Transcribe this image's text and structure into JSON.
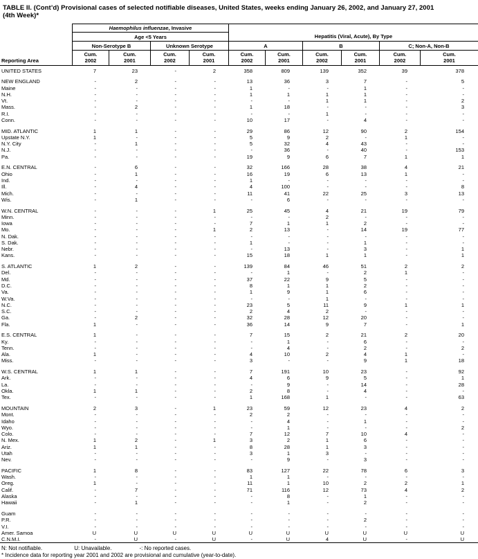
{
  "title": {
    "line1": "TABLE II. (Cont’d) Provisional cases of selected notifiable diseases, United States, weeks ending January 26, 2002, and January 27, 2001",
    "line2": "(4th Week)*"
  },
  "table": {
    "reporting_area_label": "Reporting Area",
    "hib_title_italic": "Haemophilus influenzae",
    "hib_title_rest": ", Invasive",
    "age_label": "Age <5 Years",
    "hep_label": "Hepatitis (Viral, Acute), By Type",
    "groups": [
      "Non-Serotype B",
      "Unknown Serotype",
      "A",
      "B",
      "C; Non-A, Non-B"
    ],
    "cum_cols": [
      {
        "t": "Cum.",
        "b": "2002"
      },
      {
        "t": "Cum.",
        "b": "2001"
      },
      {
        "t": "Cum.",
        "b": "2002"
      },
      {
        "t": "Cum.",
        "b": "2001"
      },
      {
        "t": "Cum.",
        "b": "2002"
      },
      {
        "t": "Cum.",
        "b": "2001"
      },
      {
        "t": "Cum.",
        "b": "2002"
      },
      {
        "t": "Cum.",
        "b": "2001"
      },
      {
        "t": "Cum.",
        "b": "2002"
      },
      {
        "t": "Cum.",
        "b": "2001"
      }
    ],
    "rows": [
      {
        "l": "UNITED STATES",
        "v": [
          "7",
          "23",
          "-",
          "2",
          "358",
          "809",
          "139",
          "352",
          "39",
          "378"
        ]
      },
      {
        "l": "NEW ENGLAND",
        "g": true,
        "v": [
          "-",
          "2",
          "-",
          "-",
          "13",
          "36",
          "3",
          "7",
          "-",
          "5"
        ]
      },
      {
        "l": "Maine",
        "v": [
          "-",
          "-",
          "-",
          "-",
          "1",
          "-",
          "-",
          "1",
          "-",
          "-"
        ]
      },
      {
        "l": "N.H.",
        "v": [
          "-",
          "-",
          "-",
          "-",
          "1",
          "1",
          "1",
          "1",
          "-",
          "-"
        ]
      },
      {
        "l": "Vt.",
        "v": [
          "-",
          "-",
          "-",
          "-",
          "-",
          "-",
          "1",
          "1",
          "-",
          "2"
        ]
      },
      {
        "l": "Mass.",
        "v": [
          "-",
          "2",
          "-",
          "-",
          "1",
          "18",
          "-",
          "-",
          "-",
          "3"
        ]
      },
      {
        "l": "R.I.",
        "v": [
          "-",
          "-",
          "-",
          "-",
          "-",
          "-",
          "1",
          "-",
          "-",
          "-"
        ]
      },
      {
        "l": "Conn.",
        "v": [
          "-",
          "-",
          "-",
          "-",
          "10",
          "17",
          "-",
          "4",
          "-",
          "-"
        ]
      },
      {
        "l": "MID. ATLANTIC",
        "g": true,
        "v": [
          "1",
          "1",
          "-",
          "-",
          "29",
          "86",
          "12",
          "90",
          "2",
          "154"
        ]
      },
      {
        "l": "Upstate N.Y.",
        "v": [
          "1",
          "-",
          "-",
          "-",
          "5",
          "9",
          "2",
          "-",
          "1",
          "-"
        ]
      },
      {
        "l": "N.Y. City",
        "v": [
          "-",
          "1",
          "-",
          "-",
          "5",
          "32",
          "4",
          "43",
          "-",
          "-"
        ]
      },
      {
        "l": "N.J.",
        "v": [
          "-",
          "-",
          "-",
          "-",
          "-",
          "36",
          "-",
          "40",
          "-",
          "153"
        ]
      },
      {
        "l": "Pa.",
        "v": [
          "-",
          "-",
          "-",
          "-",
          "19",
          "9",
          "6",
          "7",
          "1",
          "1"
        ]
      },
      {
        "l": "E.N. CENTRAL",
        "g": true,
        "v": [
          "-",
          "6",
          "-",
          "-",
          "32",
          "166",
          "28",
          "38",
          "4",
          "21"
        ]
      },
      {
        "l": "Ohio",
        "v": [
          "-",
          "1",
          "-",
          "-",
          "16",
          "19",
          "6",
          "13",
          "1",
          "-"
        ]
      },
      {
        "l": "Ind.",
        "v": [
          "-",
          "-",
          "-",
          "-",
          "1",
          "-",
          "-",
          "-",
          "-",
          "-"
        ]
      },
      {
        "l": "Ill.",
        "v": [
          "-",
          "4",
          "-",
          "-",
          "4",
          "100",
          "-",
          "-",
          "-",
          "8"
        ]
      },
      {
        "l": "Mich.",
        "v": [
          "-",
          "-",
          "-",
          "-",
          "11",
          "41",
          "22",
          "25",
          "3",
          "13"
        ]
      },
      {
        "l": "Wis.",
        "v": [
          "-",
          "1",
          "-",
          "-",
          "-",
          "6",
          "-",
          "-",
          "-",
          "-"
        ]
      },
      {
        "l": "W.N. CENTRAL",
        "g": true,
        "v": [
          "-",
          "-",
          "-",
          "1",
          "25",
          "45",
          "4",
          "21",
          "19",
          "79"
        ]
      },
      {
        "l": "Minn.",
        "v": [
          "-",
          "-",
          "-",
          "-",
          "-",
          "-",
          "2",
          "-",
          "-",
          "-"
        ]
      },
      {
        "l": "Iowa",
        "v": [
          "-",
          "-",
          "-",
          "-",
          "7",
          "1",
          "1",
          "2",
          "-",
          "-"
        ]
      },
      {
        "l": "Mo.",
        "v": [
          "-",
          "-",
          "-",
          "1",
          "2",
          "13",
          "-",
          "14",
          "19",
          "77"
        ]
      },
      {
        "l": "N. Dak.",
        "v": [
          "-",
          "-",
          "-",
          "-",
          "-",
          "-",
          "-",
          "-",
          "-",
          "-"
        ]
      },
      {
        "l": "S. Dak.",
        "v": [
          "-",
          "-",
          "-",
          "-",
          "1",
          "-",
          "-",
          "1",
          "-",
          "-"
        ]
      },
      {
        "l": "Nebr.",
        "v": [
          "-",
          "-",
          "-",
          "-",
          "-",
          "13",
          "-",
          "3",
          "-",
          "1"
        ]
      },
      {
        "l": "Kans.",
        "v": [
          "-",
          "-",
          "-",
          "-",
          "15",
          "18",
          "1",
          "1",
          "-",
          "1"
        ]
      },
      {
        "l": "S. ATLANTIC",
        "g": true,
        "v": [
          "1",
          "2",
          "-",
          "-",
          "139",
          "84",
          "46",
          "51",
          "2",
          "2"
        ]
      },
      {
        "l": "Del.",
        "v": [
          "-",
          "-",
          "-",
          "-",
          "-",
          "1",
          "-",
          "2",
          "1",
          "-"
        ]
      },
      {
        "l": "Md.",
        "v": [
          "-",
          "-",
          "-",
          "-",
          "37",
          "22",
          "9",
          "5",
          "-",
          "-"
        ]
      },
      {
        "l": "D.C.",
        "v": [
          "-",
          "-",
          "-",
          "-",
          "8",
          "1",
          "1",
          "2",
          "-",
          "-"
        ]
      },
      {
        "l": "Va.",
        "v": [
          "-",
          "-",
          "-",
          "-",
          "1",
          "9",
          "1",
          "6",
          "-",
          "-"
        ]
      },
      {
        "l": "W.Va.",
        "v": [
          "-",
          "-",
          "-",
          "-",
          "-",
          "-",
          "1",
          "-",
          "-",
          "-"
        ]
      },
      {
        "l": "N.C.",
        "v": [
          "-",
          "-",
          "-",
          "-",
          "23",
          "5",
          "11",
          "9",
          "1",
          "1"
        ]
      },
      {
        "l": "S.C.",
        "v": [
          "-",
          "-",
          "-",
          "-",
          "2",
          "4",
          "2",
          "-",
          "-",
          "-"
        ]
      },
      {
        "l": "Ga.",
        "v": [
          "-",
          "2",
          "-",
          "-",
          "32",
          "28",
          "12",
          "20",
          "-",
          "-"
        ]
      },
      {
        "l": "Fla.",
        "v": [
          "1",
          "-",
          "-",
          "-",
          "36",
          "14",
          "9",
          "7",
          "-",
          "1"
        ]
      },
      {
        "l": "E.S. CENTRAL",
        "g": true,
        "v": [
          "1",
          "-",
          "-",
          "-",
          "7",
          "15",
          "2",
          "21",
          "2",
          "20"
        ]
      },
      {
        "l": "Ky.",
        "v": [
          "-",
          "-",
          "-",
          "-",
          "-",
          "1",
          "-",
          "6",
          "-",
          "-"
        ]
      },
      {
        "l": "Tenn.",
        "v": [
          "-",
          "-",
          "-",
          "-",
          "-",
          "4",
          "-",
          "2",
          "-",
          "2"
        ]
      },
      {
        "l": "Ala.",
        "v": [
          "1",
          "-",
          "-",
          "-",
          "4",
          "10",
          "2",
          "4",
          "1",
          "-"
        ]
      },
      {
        "l": "Miss.",
        "v": [
          "-",
          "-",
          "-",
          "-",
          "3",
          "-",
          "-",
          "9",
          "1",
          "18"
        ]
      },
      {
        "l": "W.S. CENTRAL",
        "g": true,
        "v": [
          "1",
          "1",
          "-",
          "-",
          "7",
          "191",
          "10",
          "23",
          "-",
          "92"
        ]
      },
      {
        "l": "Ark.",
        "v": [
          "-",
          "-",
          "-",
          "-",
          "4",
          "6",
          "9",
          "5",
          "-",
          "1"
        ]
      },
      {
        "l": "La.",
        "v": [
          "-",
          "-",
          "-",
          "-",
          "-",
          "9",
          "-",
          "14",
          "-",
          "28"
        ]
      },
      {
        "l": "Okla.",
        "v": [
          "1",
          "1",
          "-",
          "-",
          "2",
          "8",
          "-",
          "4",
          "-",
          "-"
        ]
      },
      {
        "l": "Tex.",
        "v": [
          "-",
          "-",
          "-",
          "-",
          "1",
          "168",
          "1",
          "-",
          "-",
          "63"
        ]
      },
      {
        "l": "MOUNTAIN",
        "g": true,
        "v": [
          "2",
          "3",
          "-",
          "1",
          "23",
          "59",
          "12",
          "23",
          "4",
          "2"
        ]
      },
      {
        "l": "Mont.",
        "v": [
          "-",
          "-",
          "-",
          "-",
          "2",
          "2",
          "-",
          "-",
          "-",
          "-"
        ]
      },
      {
        "l": "Idaho",
        "v": [
          "-",
          "-",
          "-",
          "-",
          "-",
          "4",
          "-",
          "1",
          "-",
          "-"
        ]
      },
      {
        "l": "Wyo.",
        "v": [
          "-",
          "-",
          "-",
          "-",
          "-",
          "1",
          "-",
          "-",
          "-",
          "2"
        ]
      },
      {
        "l": "Colo.",
        "v": [
          "-",
          "-",
          "-",
          "-",
          "7",
          "12",
          "7",
          "10",
          "4",
          "-"
        ]
      },
      {
        "l": "N. Mex.",
        "v": [
          "1",
          "2",
          "-",
          "1",
          "3",
          "2",
          "1",
          "6",
          "-",
          "-"
        ]
      },
      {
        "l": "Ariz.",
        "v": [
          "1",
          "1",
          "-",
          "-",
          "8",
          "28",
          "1",
          "3",
          "-",
          "-"
        ]
      },
      {
        "l": "Utah",
        "v": [
          "-",
          "-",
          "-",
          "-",
          "3",
          "1",
          "3",
          "-",
          "-",
          "-"
        ]
      },
      {
        "l": "Nev.",
        "v": [
          "-",
          "-",
          "-",
          "-",
          "-",
          "9",
          "-",
          "3",
          "-",
          "-"
        ]
      },
      {
        "l": "PACIFIC",
        "g": true,
        "v": [
          "1",
          "8",
          "-",
          "-",
          "83",
          "127",
          "22",
          "78",
          "6",
          "3"
        ]
      },
      {
        "l": "Wash.",
        "v": [
          "-",
          "-",
          "-",
          "-",
          "1",
          "1",
          "-",
          "-",
          "-",
          "-"
        ]
      },
      {
        "l": "Oreg.",
        "v": [
          "1",
          "-",
          "-",
          "-",
          "11",
          "1",
          "10",
          "2",
          "2",
          "1"
        ]
      },
      {
        "l": "Calif.",
        "v": [
          "-",
          "7",
          "-",
          "-",
          "71",
          "116",
          "12",
          "73",
          "4",
          "2"
        ]
      },
      {
        "l": "Alaska",
        "v": [
          "-",
          "-",
          "-",
          "-",
          "-",
          "8",
          "-",
          "1",
          "-",
          "-"
        ]
      },
      {
        "l": "Hawaii",
        "v": [
          "-",
          "1",
          "-",
          "-",
          "-",
          "1",
          "-",
          "2",
          "-",
          "-"
        ]
      },
      {
        "l": "Guam",
        "g": true,
        "v": [
          "-",
          "-",
          "-",
          "-",
          "-",
          "-",
          "-",
          "-",
          "-",
          "-"
        ]
      },
      {
        "l": "P.R.",
        "v": [
          "-",
          "-",
          "-",
          "-",
          "-",
          "-",
          "-",
          "2",
          "-",
          "-"
        ]
      },
      {
        "l": "V.I.",
        "v": [
          "-",
          "-",
          "-",
          "-",
          "-",
          "-",
          "-",
          "-",
          "-",
          "-"
        ]
      },
      {
        "l": "Amer. Samoa",
        "v": [
          "U",
          "U",
          "U",
          "U",
          "U",
          "U",
          "U",
          "U",
          "U",
          "U"
        ]
      },
      {
        "l": "C.N.M.I.",
        "v": [
          "-",
          "U",
          "-",
          "U",
          "-",
          "U",
          "4",
          "U",
          "-",
          "U"
        ]
      }
    ]
  },
  "footnotes": {
    "legend_n": "N: Not notifiable.",
    "legend_u": "U: Unavailable.",
    "legend_dash": "-: No reported cases.",
    "note": "* Incidence data for reporting year 2001 and 2002 are provisional and cumulative (year-to-date)."
  }
}
